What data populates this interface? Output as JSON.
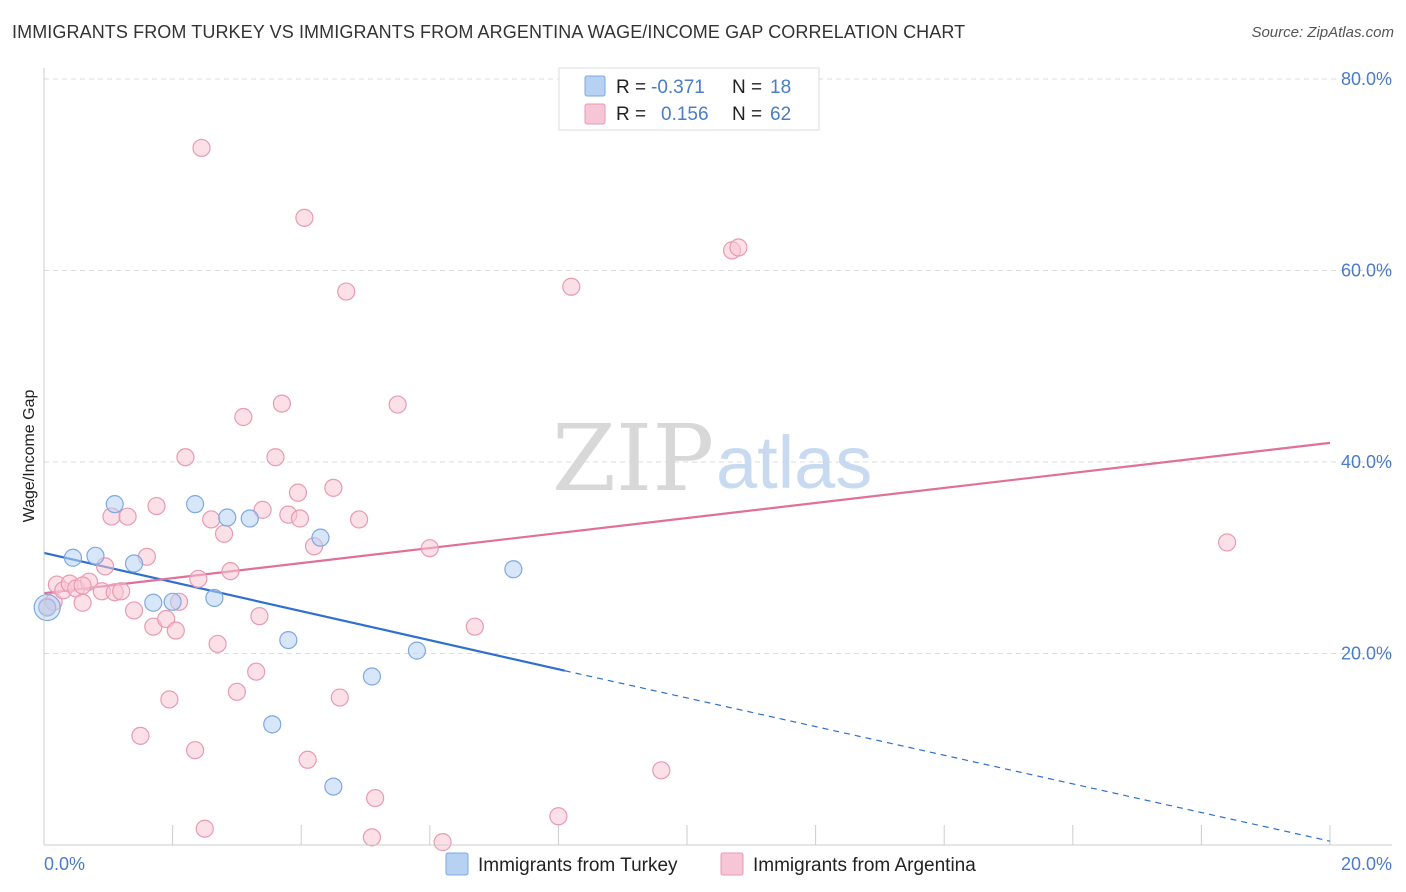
{
  "header": {
    "title": "IMMIGRANTS FROM TURKEY VS IMMIGRANTS FROM ARGENTINA WAGE/INCOME GAP CORRELATION CHART",
    "source": "Source: ZipAtlas.com"
  },
  "watermark": {
    "zip": "ZIP",
    "atlas": "atlas"
  },
  "legend": {
    "rows": [
      {
        "r_label": "R =",
        "r_value": "-0.371",
        "n_label": "N =",
        "n_value": "18"
      },
      {
        "r_label": "R =",
        "r_value": "0.156",
        "n_label": "N =",
        "n_value": "62"
      }
    ]
  },
  "bottom_legend": {
    "turkey": "Immigrants from Turkey",
    "argentina": "Immigrants from Argentina"
  },
  "colors": {
    "turkey_fill": "#b7d1f2",
    "turkey_stroke": "#7ea8e0",
    "turkey_line": "#2f6fd0",
    "argentina_fill": "#f7c6d6",
    "argentina_stroke": "#e99ab3",
    "argentina_line": "#e0709a",
    "tick": "#4a7cc9",
    "grid": "#dddddd"
  },
  "chart_data": {
    "type": "scatter",
    "title": "IMMIGRANTS FROM TURKEY VS IMMIGRANTS FROM ARGENTINA WAGE/INCOME GAP CORRELATION CHART",
    "xlabel": "",
    "ylabel": "Wage/Income Gap",
    "xlim": [
      0,
      20
    ],
    "ylim": [
      0,
      80
    ],
    "x_tick_labels": [
      "0.0%",
      "20.0%"
    ],
    "y_tick_labels": [
      "20.0%",
      "40.0%",
      "60.0%",
      "80.0%"
    ],
    "y_ticks": [
      20,
      40,
      60,
      80
    ],
    "series": [
      {
        "name": "Immigrants from Turkey",
        "r": -0.371,
        "n": 18,
        "points": [
          [
            0.05,
            24.8
          ],
          [
            0.45,
            30.0
          ],
          [
            0.8,
            30.2
          ],
          [
            1.1,
            35.6
          ],
          [
            1.4,
            29.4
          ],
          [
            1.7,
            25.3
          ],
          [
            2.0,
            25.4
          ],
          [
            2.35,
            35.6
          ],
          [
            2.65,
            25.8
          ],
          [
            2.85,
            34.2
          ],
          [
            3.2,
            34.1
          ],
          [
            3.55,
            12.6
          ],
          [
            3.8,
            21.4
          ],
          [
            4.3,
            32.1
          ],
          [
            4.5,
            6.1
          ],
          [
            5.1,
            17.6
          ],
          [
            5.8,
            20.3
          ],
          [
            7.3,
            28.8
          ]
        ],
        "trend": {
          "x0": 0,
          "y0": 30.5,
          "x1": 8.1,
          "y1": 18.2,
          "dashed_to_x": 20,
          "dashed_to_y": 0.4
        }
      },
      {
        "name": "Immigrants from Argentina",
        "r": 0.156,
        "n": 62,
        "points": [
          [
            0.05,
            24.9
          ],
          [
            0.15,
            25.4
          ],
          [
            0.2,
            27.2
          ],
          [
            0.3,
            26.6
          ],
          [
            0.4,
            27.3
          ],
          [
            0.5,
            26.8
          ],
          [
            0.6,
            25.3
          ],
          [
            0.7,
            27.5
          ],
          [
            0.9,
            26.5
          ],
          [
            0.95,
            29.1
          ],
          [
            1.05,
            34.3
          ],
          [
            1.1,
            26.4
          ],
          [
            1.2,
            26.5
          ],
          [
            1.3,
            34.3
          ],
          [
            1.4,
            24.5
          ],
          [
            1.5,
            11.4
          ],
          [
            1.6,
            30.1
          ],
          [
            1.7,
            22.8
          ],
          [
            1.75,
            35.4
          ],
          [
            1.9,
            23.6
          ],
          [
            1.95,
            15.2
          ],
          [
            2.05,
            22.4
          ],
          [
            2.1,
            25.4
          ],
          [
            2.2,
            40.5
          ],
          [
            2.35,
            9.9
          ],
          [
            2.4,
            27.8
          ],
          [
            2.45,
            72.8
          ],
          [
            2.5,
            1.7
          ],
          [
            2.6,
            34.0
          ],
          [
            2.7,
            21.0
          ],
          [
            2.8,
            32.5
          ],
          [
            2.9,
            28.6
          ],
          [
            3.0,
            16.0
          ],
          [
            3.1,
            44.7
          ],
          [
            3.3,
            18.1
          ],
          [
            3.35,
            23.9
          ],
          [
            3.4,
            35.0
          ],
          [
            3.6,
            40.5
          ],
          [
            3.7,
            46.1
          ],
          [
            3.8,
            34.5
          ],
          [
            3.95,
            36.8
          ],
          [
            3.98,
            34.1
          ],
          [
            4.05,
            65.5
          ],
          [
            4.1,
            8.9
          ],
          [
            4.2,
            31.2
          ],
          [
            4.5,
            37.3
          ],
          [
            4.6,
            15.4
          ],
          [
            4.7,
            57.8
          ],
          [
            4.9,
            34.0
          ],
          [
            5.1,
            0.8
          ],
          [
            5.15,
            4.9
          ],
          [
            5.5,
            46.0
          ],
          [
            6.0,
            31.0
          ],
          [
            6.2,
            0.3
          ],
          [
            6.7,
            22.8
          ],
          [
            8.0,
            3.0
          ],
          [
            8.2,
            58.3
          ],
          [
            9.6,
            7.8
          ],
          [
            10.7,
            62.1
          ],
          [
            10.8,
            62.4
          ],
          [
            18.4,
            31.6
          ],
          [
            0.6,
            27.1
          ]
        ],
        "trend": {
          "x0": 0,
          "y0": 26.3,
          "x1": 20,
          "y1": 42.0
        }
      }
    ]
  }
}
